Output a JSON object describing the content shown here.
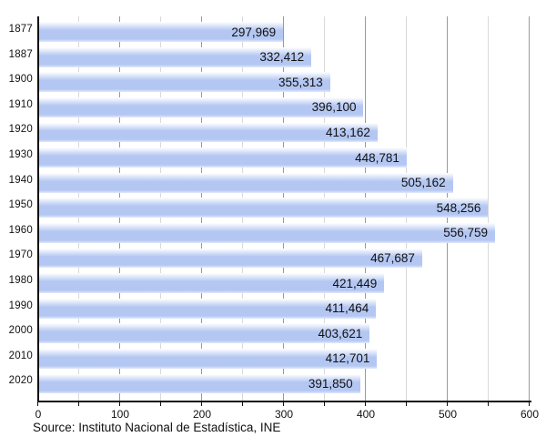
{
  "chart_data": {
    "type": "bar",
    "orientation": "horizontal",
    "title": "",
    "xlabel": "",
    "ylabel": "",
    "categories": [
      "1877",
      "1887",
      "1900",
      "1910",
      "1920",
      "1930",
      "1940",
      "1950",
      "1960",
      "1970",
      "1980",
      "1990",
      "2000",
      "2010",
      "2020"
    ],
    "values": [
      297969,
      332412,
      355313,
      396100,
      413162,
      448781,
      505162,
      548256,
      556759,
      467687,
      421449,
      411464,
      403621,
      412701,
      391850
    ],
    "value_labels": [
      "297,969",
      "332,412",
      "355,313",
      "396,100",
      "413,162",
      "448,781",
      "505,162",
      "548,256",
      "556,759",
      "467,687",
      "421,449",
      "411,464",
      "403,621",
      "412,701",
      "391,850"
    ],
    "x_axis": {
      "tick_labels": [
        "0",
        "100",
        "200",
        "300",
        "400",
        "500",
        "600"
      ],
      "major_tick_step": 100,
      "minor_tick_step": 50,
      "min": 0,
      "max": 600,
      "value_divisor_for_axis": 1000
    },
    "grid": "vertical, minor every 50 (light), major every 100 (dark)",
    "legend": "none",
    "source": "Source: Instituto Nacional de Estadística, INE",
    "colors": {
      "bar_fill": "#b4c7f3",
      "bar_highlight": "#ffffff",
      "major_gridline": "#9a9a9a",
      "minor_gridline": "#d9d9d9",
      "axis": "#111111",
      "text": "#111111"
    }
  }
}
